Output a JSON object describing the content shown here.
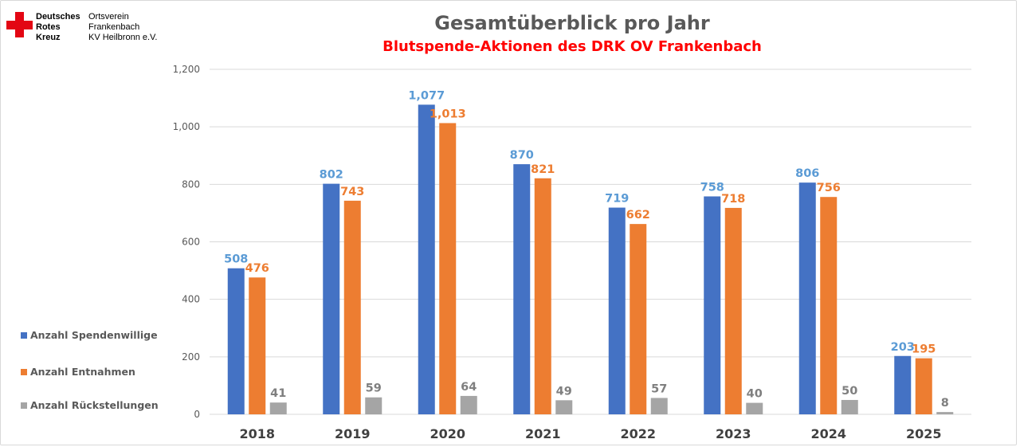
{
  "logo": {
    "org_lines": [
      "Deutsches",
      "Rotes",
      "Kreuz"
    ],
    "unit_lines": [
      "Ortsverein",
      "Frankenbach",
      "KV Heilbronn e.V."
    ],
    "icon": "red-cross-icon",
    "color": "#e30613"
  },
  "chart_data": {
    "type": "bar",
    "title": "Gesamtüberblick pro Jahr",
    "subtitle": "Blutspende-Aktionen des DRK OV Frankenbach",
    "categories": [
      "2018",
      "2019",
      "2020",
      "2021",
      "2022",
      "2023",
      "2024",
      "2025"
    ],
    "series": [
      {
        "name": "Anzahl Spendenwillige",
        "color": "#4472c4",
        "label_color": "#5b9bd5",
        "values": [
          508,
          802,
          1077,
          870,
          719,
          758,
          806,
          203
        ],
        "labels": [
          "508",
          "802",
          "1,077",
          "870",
          "719",
          "758",
          "806",
          "203"
        ]
      },
      {
        "name": "Anzahl Entnahmen",
        "color": "#ed7d31",
        "label_color": "#ed7d31",
        "values": [
          476,
          743,
          1013,
          821,
          662,
          718,
          756,
          195
        ],
        "labels": [
          "476",
          "743",
          "1,013",
          "821",
          "662",
          "718",
          "756",
          "195"
        ]
      },
      {
        "name": "Anzahl Rückstellungen",
        "color": "#a5a5a5",
        "label_color": "#7f7f7f",
        "values": [
          41,
          59,
          64,
          49,
          57,
          40,
          50,
          8
        ],
        "labels": [
          "41",
          "59",
          "64",
          "49",
          "57",
          "40",
          "50",
          "8"
        ]
      }
    ],
    "yticks": [
      0,
      200,
      400,
      600,
      800,
      1000,
      1200
    ],
    "ytick_labels": [
      "0",
      "200",
      "400",
      "600",
      "800",
      "1,000",
      "1,200"
    ],
    "ylim": [
      0,
      1200
    ],
    "grid": true,
    "legend_position": "left"
  }
}
